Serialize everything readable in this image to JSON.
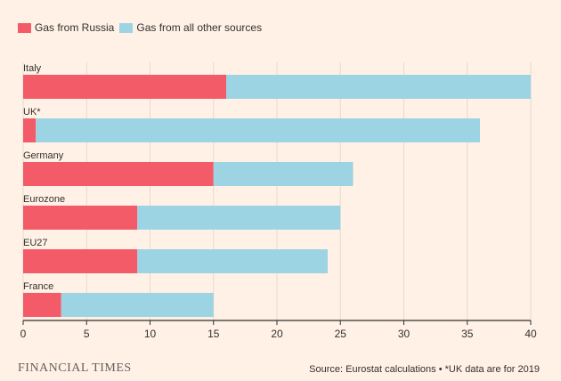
{
  "brand": "FINANCIAL TIMES",
  "source": "Source: Eurostat calculations • *UK data are for 2019",
  "colors": {
    "russia": "#f35b69",
    "other": "#9dd4e4",
    "background": "#fff1e5",
    "axis": "#33302e"
  },
  "chart_data": {
    "type": "bar",
    "orientation": "horizontal",
    "stacked": true,
    "title": "",
    "xlabel": "",
    "ylabel": "",
    "categories": [
      "Italy",
      "UK*",
      "Germany",
      "Eurozone",
      "EU27",
      "France"
    ],
    "series": [
      {
        "name": "Gas from Russia",
        "values": [
          16,
          1,
          15,
          9,
          9,
          3
        ]
      },
      {
        "name": "Gas from all other sources",
        "values": [
          24,
          35,
          11,
          16,
          15,
          12
        ]
      }
    ],
    "xlim": [
      0,
      40
    ],
    "xticks": [
      0,
      5,
      10,
      15,
      20,
      25,
      30,
      35,
      40
    ],
    "grid": true,
    "legend": "top-left"
  }
}
